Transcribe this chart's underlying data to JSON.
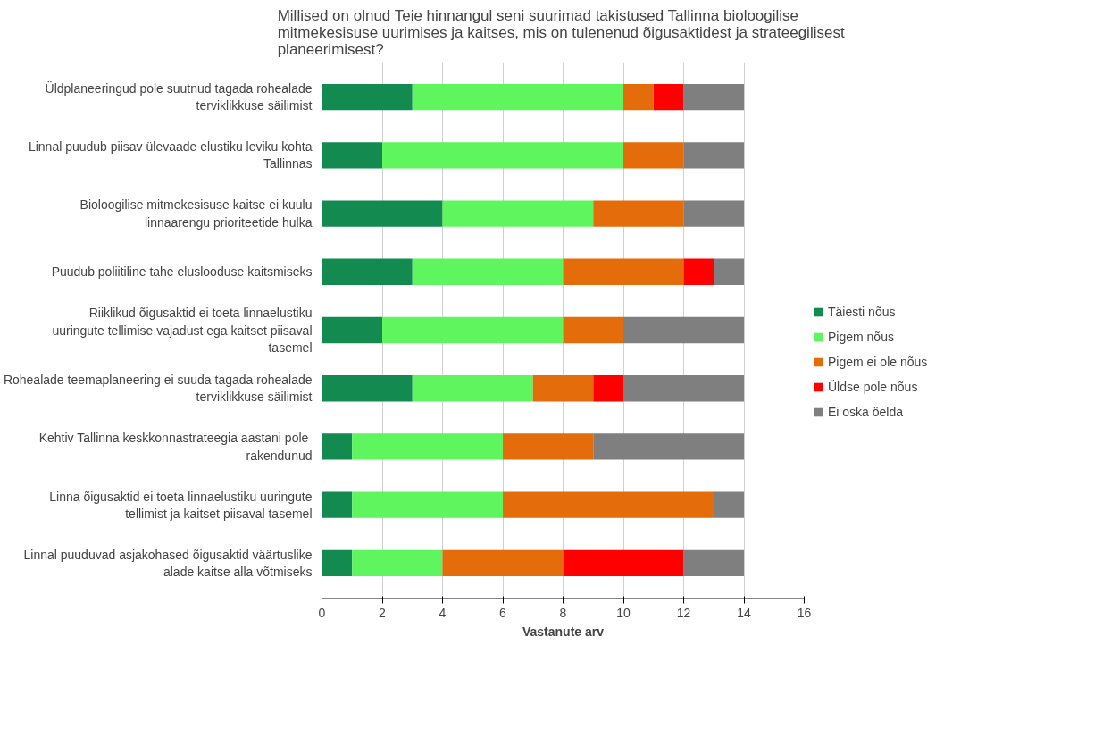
{
  "chart_data": {
    "type": "bar",
    "orientation": "horizontal",
    "stacked": true,
    "title": "Millised on olnud Teie hinnangul seni suurimad takistused Tallinna bioloogilise mitmekesisuse uurimises ja kaitses, mis on tulenenud  õigusaktidest ja strateegilisest planeerimisest?",
    "xlabel": "Vastanute arv",
    "categories": [
      "Üldplaneeringud pole suutnud tagada rohealade terviklikkuse säilimist",
      "Linnal puudub piisav ülevaade elustiku leviku kohta Tallinnas",
      "Bioloogilise mitmekesisuse kaitse ei kuulu linnaarengu prioriteetide hulka",
      "Puudub poliitiline tahe eluslooduse kaitsmiseks",
      "Riiklikud õigusaktid ei toeta linnaelustiku uuringute tellimise vajadust ega kaitset piisaval tasemel",
      "Rohealade teemaplaneering ei suuda tagada rohealade terviklikkuse säilimist",
      "Kehtiv Tallinna keskkonnastrateegia aastani  pole rakendunud",
      "Linna õigusaktid ei toeta linnaelustiku uuringute tellimist ja kaitset piisaval tasemel",
      "Linnal puuduvad asjakohased õigusaktid väärtuslike alade kaitse alla võtmiseks"
    ],
    "series": [
      {
        "name": "Täiesti nõus",
        "color": "#138a4f",
        "values": [
          3,
          2,
          4,
          3,
          2,
          3,
          1,
          1,
          1
        ]
      },
      {
        "name": "Pigem nõus",
        "color": "#5ef55e",
        "values": [
          7,
          8,
          5,
          5,
          6,
          4,
          5,
          5,
          3
        ]
      },
      {
        "name": "Pigem ei ole nõus",
        "color": "#e46c0a",
        "values": [
          1,
          2,
          3,
          4,
          2,
          2,
          3,
          7,
          4
        ]
      },
      {
        "name": "Üldse pole nõus",
        "color": "#ff0000",
        "values": [
          1,
          0,
          0,
          1,
          0,
          1,
          0,
          0,
          4
        ]
      },
      {
        "name": "Ei oska öelda",
        "color": "#7f7f7f",
        "values": [
          2,
          2,
          2,
          1,
          4,
          4,
          5,
          1,
          2
        ]
      }
    ],
    "xlim": [
      0,
      16
    ],
    "xticks": [
      0,
      2,
      4,
      6,
      8,
      10,
      12,
      14,
      16
    ],
    "grid": "x",
    "legend": "right"
  }
}
